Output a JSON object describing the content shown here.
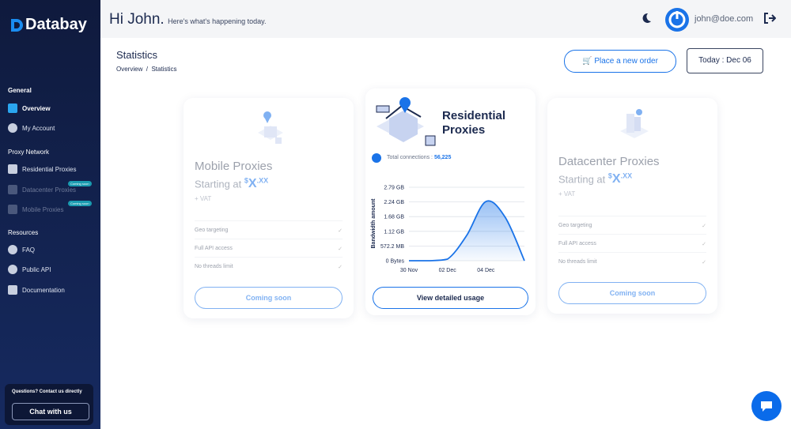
{
  "sidebar": {
    "brand": "Databay",
    "sections": [
      {
        "title": "General",
        "items": [
          {
            "label": "Overview"
          },
          {
            "label": "My Account"
          }
        ]
      },
      {
        "title": "Proxy Network",
        "items": [
          {
            "label": "Residential Proxies"
          },
          {
            "label": "Datacenter Proxies",
            "badge": "Coming soon"
          },
          {
            "label": "Mobile Proxies",
            "badge": "Coming soon"
          }
        ]
      },
      {
        "title": "Resources",
        "items": [
          {
            "label": "FAQ"
          },
          {
            "label": "Public API"
          },
          {
            "label": "Documentation"
          }
        ]
      }
    ],
    "support": {
      "text": "Questions? Contact us directly",
      "button": "Chat with us"
    }
  },
  "header": {
    "greeting": "Hi John.",
    "subtitle": "Here's what's happening today.",
    "email": "john@doe.com"
  },
  "page": {
    "title": "Statistics",
    "breadcrumb": [
      "Overview",
      "Statistics"
    ],
    "order_button": "Place a new order",
    "date_button": "Today : Dec 06"
  },
  "cards": [
    {
      "title": "Mobile Proxies",
      "price_prefix": "Starting at",
      "price": {
        "currency": "$",
        "whole": "X",
        "fraction": ".XX"
      },
      "vat": "+ VAT",
      "features": [
        "Geo targeting",
        "Full API access",
        "No threads limit"
      ],
      "button": "Coming soon"
    },
    {
      "title": "Residential Proxies",
      "connections_label": "Total connections :",
      "connections": "56,225",
      "chart": {
        "type": "area",
        "y_label": "Bandwidth amount",
        "color": "#1a73e8",
        "categories": [
          "30 Nov",
          null,
          "02 Dec",
          null,
          "04 Dec",
          null,
          null
        ],
        "values": [
          0,
          0,
          60,
          985,
          2307,
          1692,
          0
        ],
        "ylim": [
          0,
          2861
        ],
        "yticks": [
          {
            "value": 0,
            "label": "0 Bytes"
          },
          {
            "value": 572.2,
            "label": "572.2 MB"
          },
          {
            "value": 1144.4,
            "label": "1.12 GB"
          },
          {
            "value": 1716.6,
            "label": "1.68 GB"
          },
          {
            "value": 2288.8,
            "label": "2.24 GB"
          },
          {
            "value": 2861,
            "label": "2.79 GB"
          }
        ],
        "grid": true
      },
      "button": "View detailed usage"
    },
    {
      "title": "Datacenter Proxies",
      "price_prefix": "Starting at",
      "price": {
        "currency": "$",
        "whole": "X",
        "fraction": ".XX"
      },
      "vat": "+ VAT",
      "features": [
        "Geo targeting",
        "Full API access",
        "No threads limit"
      ],
      "button": "Coming soon"
    }
  ]
}
